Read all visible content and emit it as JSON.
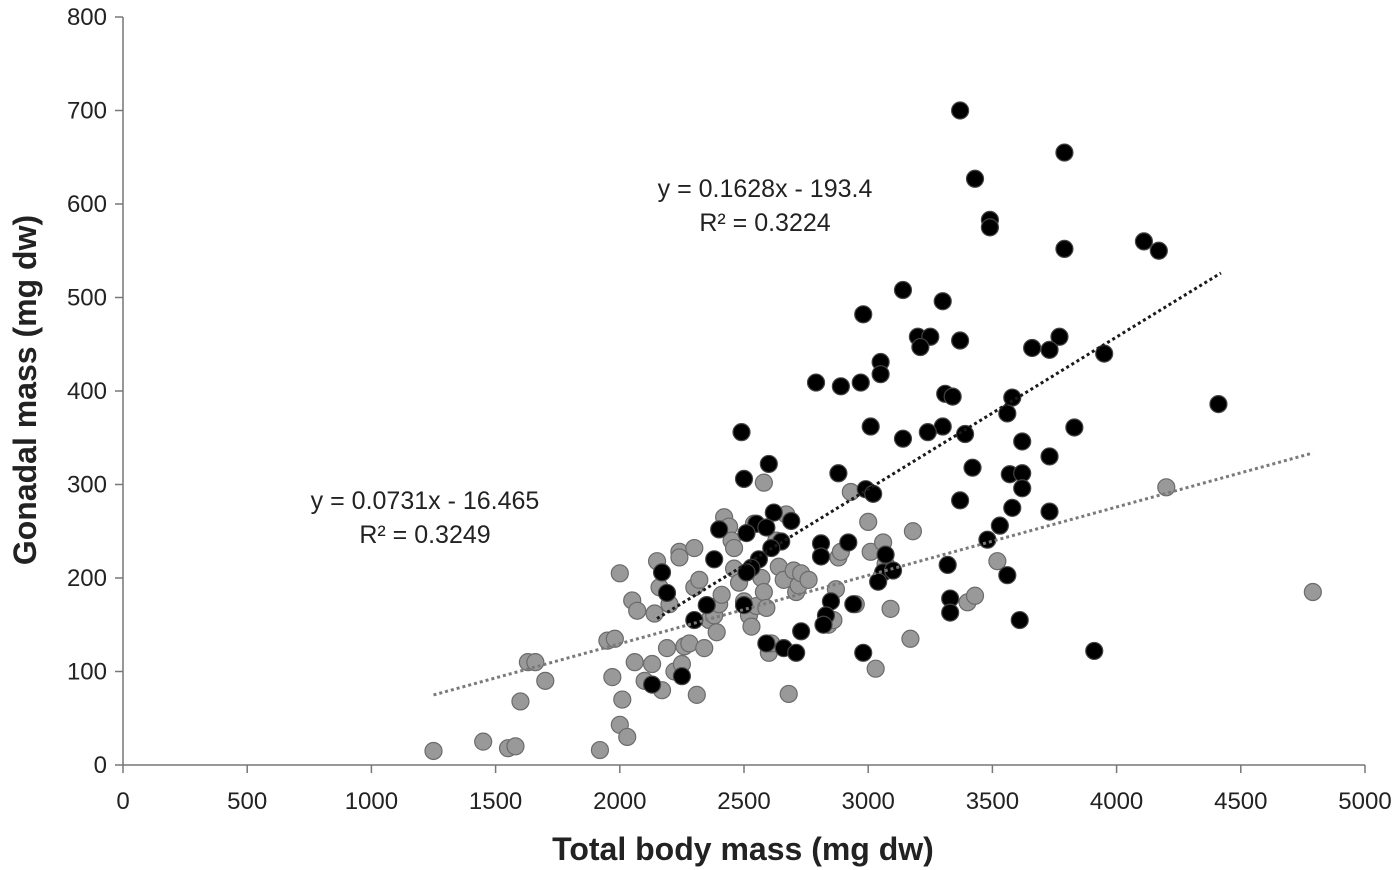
{
  "chart_data": {
    "type": "scatter",
    "title": "",
    "xlabel": "Total body mass (mg dw)",
    "ylabel": "Gonadal mass (mg dw)",
    "xlim": [
      0,
      5000
    ],
    "ylim": [
      0,
      800
    ],
    "xticks": [
      0,
      500,
      1000,
      1500,
      2000,
      2500,
      3000,
      3500,
      4000,
      4500,
      5000
    ],
    "yticks": [
      0,
      100,
      200,
      300,
      400,
      500,
      600,
      700,
      800
    ],
    "grid": false,
    "legend": "none",
    "series": [
      {
        "name": "black",
        "color": "#000000",
        "stroke": "#444444",
        "points": [
          [
            3370,
            700
          ],
          [
            3790,
            655
          ],
          [
            3430,
            627
          ],
          [
            3490,
            583
          ],
          [
            3490,
            575
          ],
          [
            4110,
            560
          ],
          [
            4170,
            550
          ],
          [
            3790,
            552
          ],
          [
            3140,
            508
          ],
          [
            3300,
            496
          ],
          [
            2980,
            482
          ],
          [
            3200,
            458
          ],
          [
            3250,
            458
          ],
          [
            3770,
            458
          ],
          [
            3370,
            454
          ],
          [
            3210,
            447
          ],
          [
            3660,
            446
          ],
          [
            3730,
            444
          ],
          [
            3950,
            440
          ],
          [
            3050,
            431
          ],
          [
            3050,
            418
          ],
          [
            2790,
            409
          ],
          [
            2970,
            409
          ],
          [
            2890,
            405
          ],
          [
            3310,
            397
          ],
          [
            3340,
            394
          ],
          [
            3580,
            393
          ],
          [
            4410,
            386
          ],
          [
            3560,
            376
          ],
          [
            3010,
            362
          ],
          [
            3300,
            362
          ],
          [
            3830,
            361
          ],
          [
            3240,
            356
          ],
          [
            3390,
            354
          ],
          [
            3140,
            349
          ],
          [
            3620,
            346
          ],
          [
            2490,
            356
          ],
          [
            3730,
            330
          ],
          [
            2600,
            322
          ],
          [
            3420,
            318
          ],
          [
            2880,
            312
          ],
          [
            3570,
            311
          ],
          [
            3620,
            312
          ],
          [
            2500,
            306
          ],
          [
            3620,
            296
          ],
          [
            2990,
            295
          ],
          [
            3020,
            290
          ],
          [
            3370,
            283
          ],
          [
            3580,
            275
          ],
          [
            3730,
            271
          ],
          [
            2620,
            270
          ],
          [
            2690,
            261
          ],
          [
            2550,
            258
          ],
          [
            3530,
            256
          ],
          [
            2400,
            252
          ],
          [
            2590,
            254
          ],
          [
            2510,
            248
          ],
          [
            3480,
            241
          ],
          [
            2650,
            239
          ],
          [
            2920,
            238
          ],
          [
            2810,
            237
          ],
          [
            2610,
            232
          ],
          [
            3070,
            225
          ],
          [
            2810,
            223
          ],
          [
            2560,
            220
          ],
          [
            2380,
            220
          ],
          [
            3320,
            214
          ],
          [
            2530,
            211
          ],
          [
            2510,
            206
          ],
          [
            2170,
            206
          ],
          [
            3060,
            206
          ],
          [
            3100,
            208
          ],
          [
            3560,
            203
          ],
          [
            3040,
            196
          ],
          [
            2190,
            184
          ],
          [
            2850,
            175
          ],
          [
            3330,
            178
          ],
          [
            2500,
            171
          ],
          [
            2350,
            171
          ],
          [
            2940,
            172
          ],
          [
            2830,
            160
          ],
          [
            3330,
            163
          ],
          [
            2300,
            155
          ],
          [
            2820,
            150
          ],
          [
            3610,
            155
          ],
          [
            2730,
            143
          ],
          [
            2590,
            130
          ],
          [
            2660,
            125
          ],
          [
            2710,
            120
          ],
          [
            2980,
            120
          ],
          [
            3910,
            122
          ],
          [
            2250,
            95
          ],
          [
            2130,
            86
          ]
        ]
      },
      {
        "name": "gray",
        "color": "#999999",
        "stroke": "#6b6b6b",
        "points": [
          [
            1250,
            15
          ],
          [
            1450,
            25
          ],
          [
            1550,
            18
          ],
          [
            1580,
            20
          ],
          [
            1600,
            68
          ],
          [
            1630,
            110
          ],
          [
            1660,
            110
          ],
          [
            1700,
            90
          ],
          [
            1920,
            16
          ],
          [
            1950,
            133
          ],
          [
            1970,
            94
          ],
          [
            1980,
            135
          ],
          [
            2000,
            43
          ],
          [
            2000,
            205
          ],
          [
            2010,
            70
          ],
          [
            2030,
            30
          ],
          [
            2050,
            176
          ],
          [
            2060,
            110
          ],
          [
            2070,
            165
          ],
          [
            2100,
            90
          ],
          [
            2130,
            108
          ],
          [
            2140,
            162
          ],
          [
            2150,
            218
          ],
          [
            2160,
            190
          ],
          [
            2170,
            80
          ],
          [
            2190,
            125
          ],
          [
            2200,
            172
          ],
          [
            2220,
            100
          ],
          [
            2240,
            228
          ],
          [
            2240,
            222
          ],
          [
            2250,
            108
          ],
          [
            2260,
            127
          ],
          [
            2280,
            130
          ],
          [
            2300,
            232
          ],
          [
            2300,
            190
          ],
          [
            2310,
            75
          ],
          [
            2320,
            198
          ],
          [
            2340,
            125
          ],
          [
            2360,
            155
          ],
          [
            2380,
            160
          ],
          [
            2390,
            142
          ],
          [
            2400,
            172
          ],
          [
            2410,
            182
          ],
          [
            2420,
            265
          ],
          [
            2440,
            255
          ],
          [
            2450,
            240
          ],
          [
            2460,
            232
          ],
          [
            2460,
            210
          ],
          [
            2480,
            195
          ],
          [
            2500,
            175
          ],
          [
            2520,
            160
          ],
          [
            2530,
            148
          ],
          [
            2540,
            258
          ],
          [
            2550,
            170
          ],
          [
            2570,
            200
          ],
          [
            2580,
            302
          ],
          [
            2580,
            185
          ],
          [
            2590,
            168
          ],
          [
            2600,
            120
          ],
          [
            2610,
            130
          ],
          [
            2630,
            240
          ],
          [
            2640,
            212
          ],
          [
            2660,
            198
          ],
          [
            2670,
            268
          ],
          [
            2680,
            76
          ],
          [
            2700,
            208
          ],
          [
            2710,
            185
          ],
          [
            2720,
            192
          ],
          [
            2730,
            205
          ],
          [
            2760,
            198
          ],
          [
            2840,
            150
          ],
          [
            2860,
            155
          ],
          [
            2870,
            188
          ],
          [
            2880,
            222
          ],
          [
            2890,
            228
          ],
          [
            2930,
            292
          ],
          [
            2950,
            172
          ],
          [
            3000,
            260
          ],
          [
            3010,
            228
          ],
          [
            3030,
            103
          ],
          [
            3060,
            238
          ],
          [
            3070,
            215
          ],
          [
            3090,
            167
          ],
          [
            3170,
            135
          ],
          [
            3180,
            250
          ],
          [
            3400,
            174
          ],
          [
            3430,
            181
          ],
          [
            3520,
            218
          ],
          [
            4200,
            297
          ],
          [
            4790,
            185
          ]
        ]
      }
    ],
    "trendlines": [
      {
        "series": "black",
        "color": "#1a1a1a",
        "x_range": [
          2150,
          4420
        ],
        "slope": 0.1628,
        "intercept": -193.4,
        "equation": "y = 0.1628x - 193.4",
        "r2": "R² = 0.3224"
      },
      {
        "series": "gray",
        "color": "#7a7a7a",
        "x_range": [
          1250,
          4790
        ],
        "slope": 0.0731,
        "intercept": -16.465,
        "equation": "y = 0.0731x - 16.465",
        "r2": "R² = 0.3249"
      }
    ]
  }
}
